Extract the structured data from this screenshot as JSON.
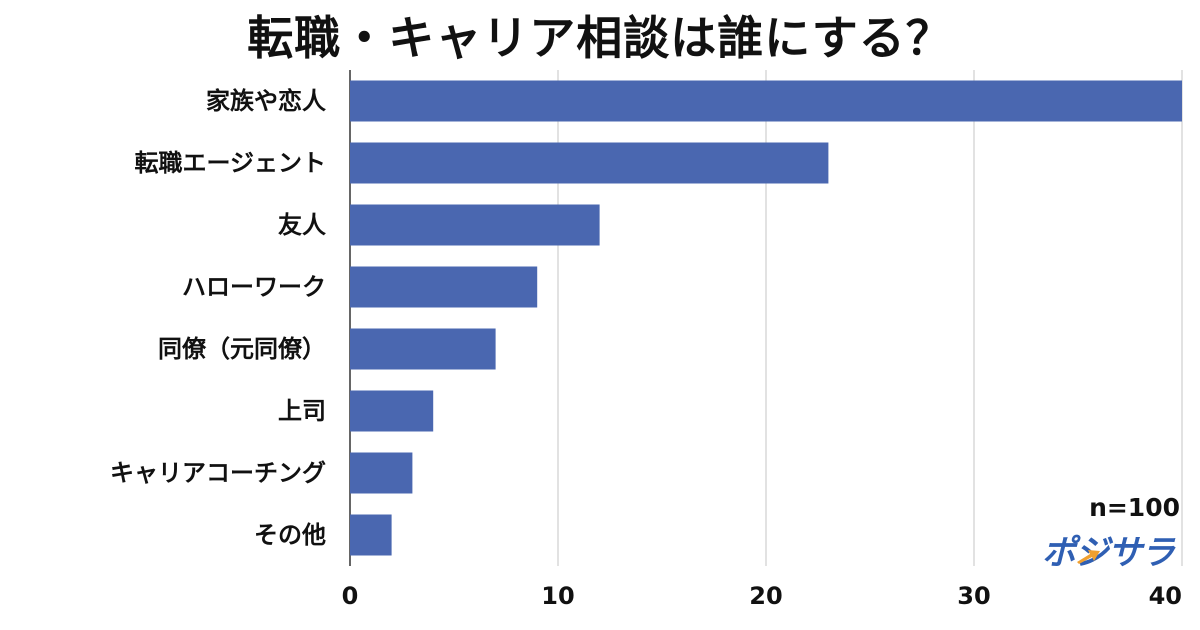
{
  "title": "転職・キャリア相談は誰にする？",
  "sample_note": "n=100",
  "logo_text": "ポジサラ",
  "colors": {
    "bar": "#4a67b0",
    "accent": "#f0a030"
  },
  "chart_data": {
    "type": "bar",
    "orientation": "horizontal",
    "title": "転職・キャリア相談は誰にする？",
    "categories": [
      "家族や恋人",
      "転職エージェント",
      "友人",
      "ハローワーク",
      "同僚（元同僚）",
      "上司",
      "キャリアコーチング",
      "その他"
    ],
    "values": [
      40,
      23,
      12,
      9,
      7,
      4,
      3,
      2
    ],
    "xlim": [
      0,
      40
    ],
    "xticks": [
      "0",
      "10",
      "20",
      "30",
      "40"
    ],
    "xlabel": "",
    "ylabel": "",
    "grid": "vertical"
  }
}
